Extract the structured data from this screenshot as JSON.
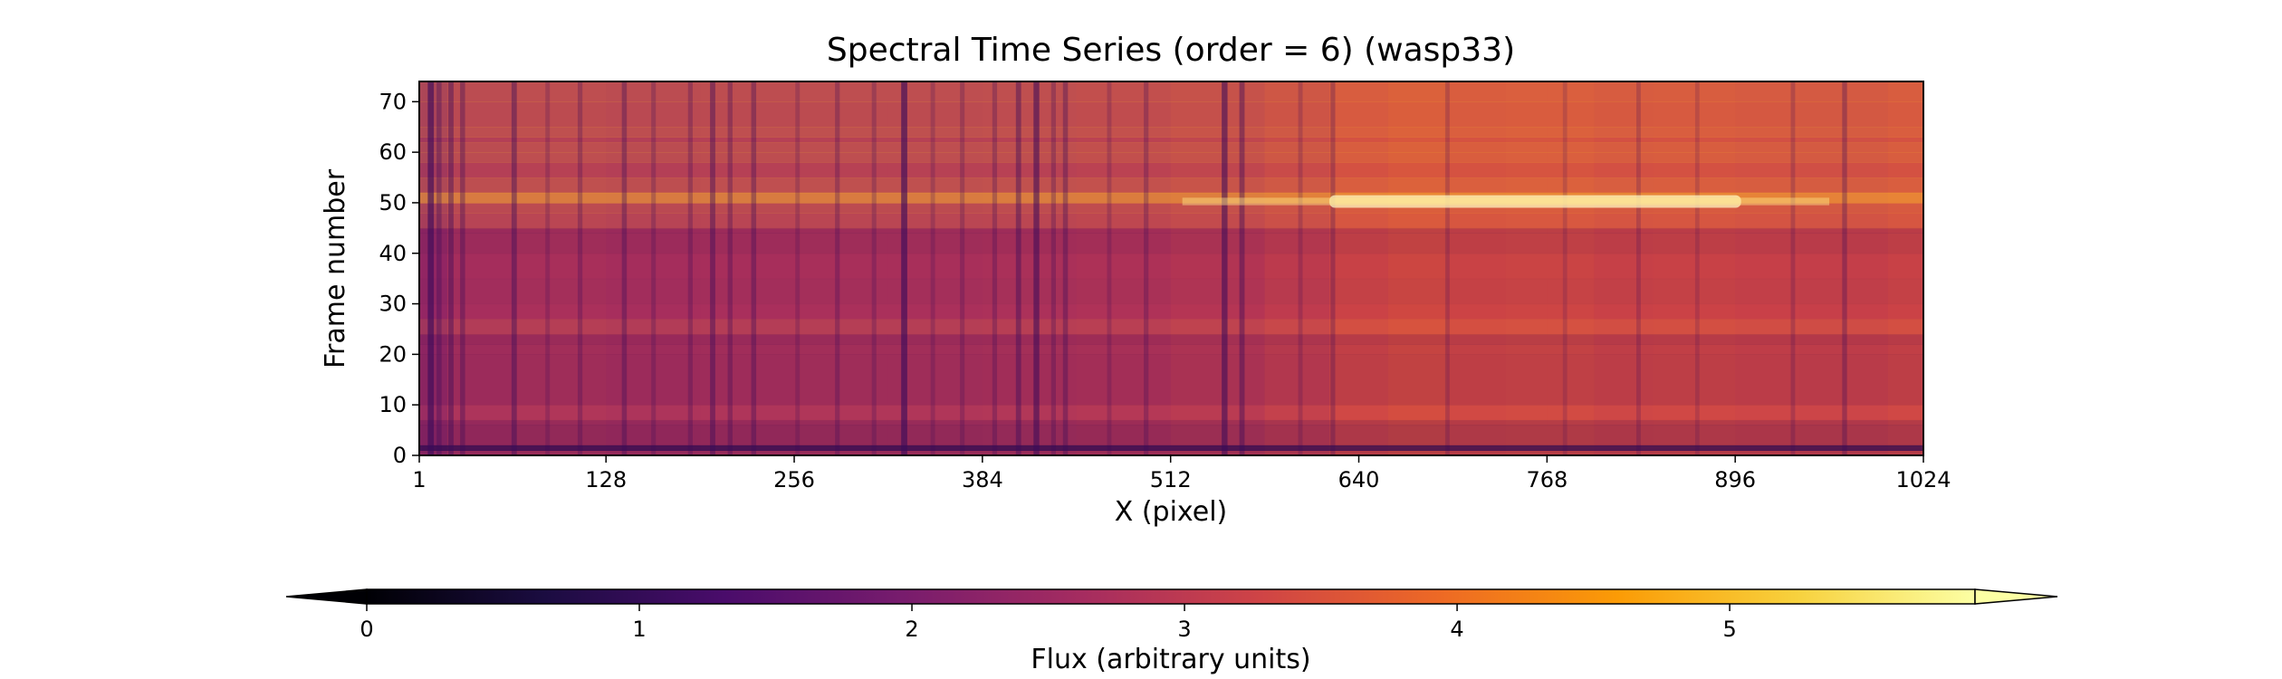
{
  "chart_data": {
    "type": "heatmap",
    "title": "Spectral Time Series (order = 6) (wasp33)",
    "xlabel": "X (pixel)",
    "ylabel": "Frame number",
    "xlim": [
      1,
      1024
    ],
    "ylim": [
      0,
      74
    ],
    "x_ticks": [
      1,
      128,
      256,
      384,
      512,
      640,
      768,
      896,
      1024
    ],
    "y_ticks": [
      0,
      10,
      20,
      30,
      40,
      50,
      60,
      70
    ],
    "colorbar": {
      "label": "Flux (arbitrary units)",
      "colormap": "inferno",
      "range": [
        0,
        5.9
      ],
      "ticks": [
        0,
        1,
        2,
        3,
        4,
        5
      ],
      "extend": "both"
    },
    "column_profile": {
      "x": [
        1,
        20,
        64,
        128,
        192,
        256,
        320,
        384,
        448,
        512,
        576,
        620,
        660,
        700,
        740,
        768,
        800,
        840,
        896,
        940,
        1000,
        1024
      ],
      "flux": [
        2.2,
        2.6,
        2.8,
        2.7,
        2.7,
        2.75,
        2.75,
        2.75,
        2.8,
        2.85,
        3.0,
        3.15,
        3.4,
        3.35,
        3.25,
        3.4,
        3.25,
        3.25,
        3.3,
        3.15,
        3.25,
        3.3
      ]
    },
    "row_profile": {
      "frame": [
        0,
        1,
        2,
        6,
        7,
        10,
        20,
        22,
        24,
        27,
        30,
        35,
        40,
        44,
        45,
        48,
        50,
        52,
        55,
        58,
        60,
        62,
        63,
        65,
        70,
        74
      ],
      "flux_offset": [
        -0.4,
        -2.0,
        -0.5,
        -0.4,
        0.1,
        -0.25,
        -0.2,
        -0.35,
        0.25,
        -0.05,
        -0.15,
        -0.1,
        -0.25,
        -0.3,
        0.4,
        0.5,
        1.4,
        0.6,
        0.3,
        0.55,
        0.55,
        0.3,
        0.6,
        0.5,
        0.55,
        0.45
      ]
    },
    "absorption_lines_x": [
      8,
      14,
      22,
      30,
      65,
      88,
      110,
      140,
      160,
      185,
      200,
      212,
      228,
      258,
      285,
      310,
      330,
      350,
      370,
      392,
      408,
      420,
      432,
      440,
      470,
      495,
      548,
      560,
      600,
      622,
      700,
      780,
      830,
      870,
      935,
      970
    ],
    "line_depths": [
      0.9,
      0.5,
      0.6,
      0.5,
      0.6,
      0.3,
      0.4,
      0.5,
      0.35,
      0.4,
      0.6,
      0.45,
      0.5,
      0.3,
      0.4,
      0.35,
      0.9,
      0.3,
      0.35,
      0.4,
      0.6,
      0.8,
      0.4,
      0.5,
      0.3,
      0.4,
      0.8,
      0.6,
      0.3,
      0.4,
      0.3,
      0.25,
      0.3,
      0.25,
      0.3,
      0.45
    ]
  }
}
